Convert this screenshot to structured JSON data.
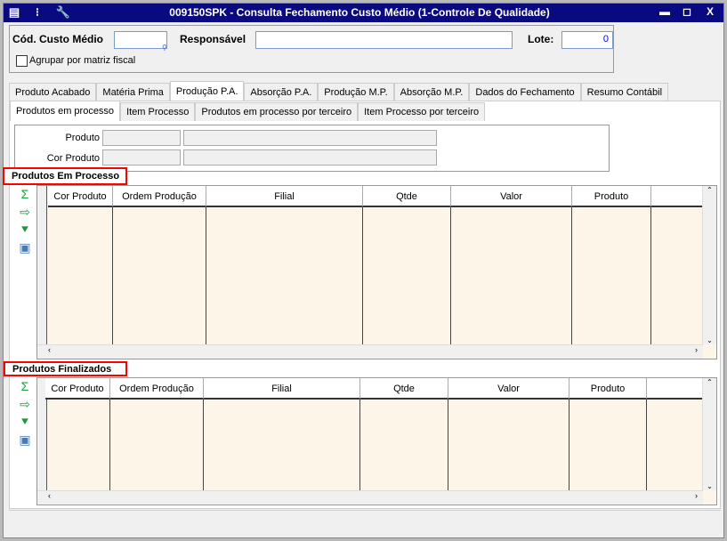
{
  "window": {
    "title": "009150SPK - Consulta Fechamento Custo Médio (1-Controle De Qualidade)",
    "minimize": "▬",
    "maximize": "◻",
    "close": "X"
  },
  "header": {
    "cod_label": "Cód. Custo Médio",
    "cod_value": "",
    "resp_label": "Responsável",
    "resp_value": "",
    "lote_label": "Lote:",
    "lote_value": "0",
    "agrupar_label": "Agrupar por matriz fiscal",
    "agrupar_checked": false
  },
  "tabs": [
    "Produto Acabado",
    "Matéria Prima",
    "Produção P.A.",
    "Absorção P.A.",
    "Produção M.P.",
    "Absorção M.P.",
    "Dados do Fechamento",
    "Resumo Contábil"
  ],
  "active_tab": 2,
  "subtabs": [
    "Produtos em processo",
    "Item Processo",
    "Produtos em processo por terceiro",
    "Item Processo por terceiro"
  ],
  "active_subtab": 0,
  "filter": {
    "produto_label": "Produto",
    "cor_label": "Cor Produto"
  },
  "grid1": {
    "title": "Produtos Em Processo",
    "columns": [
      "Cor Produto",
      "Ordem Produção",
      "Filial",
      "Qtde",
      "Valor",
      "Produto"
    ]
  },
  "grid2": {
    "title": "Produtos Finalizados",
    "columns": [
      "Cor Produto",
      "Ordem Produção",
      "Filial",
      "Qtde",
      "Valor",
      "Produto"
    ]
  },
  "side_icons": [
    "sum-icon",
    "export-icon",
    "download-icon",
    "image-icon"
  ],
  "colors": {
    "titlebar": "#0a0a80",
    "grid_bg": "#fdf6e8",
    "highlight": "#ff0000"
  }
}
